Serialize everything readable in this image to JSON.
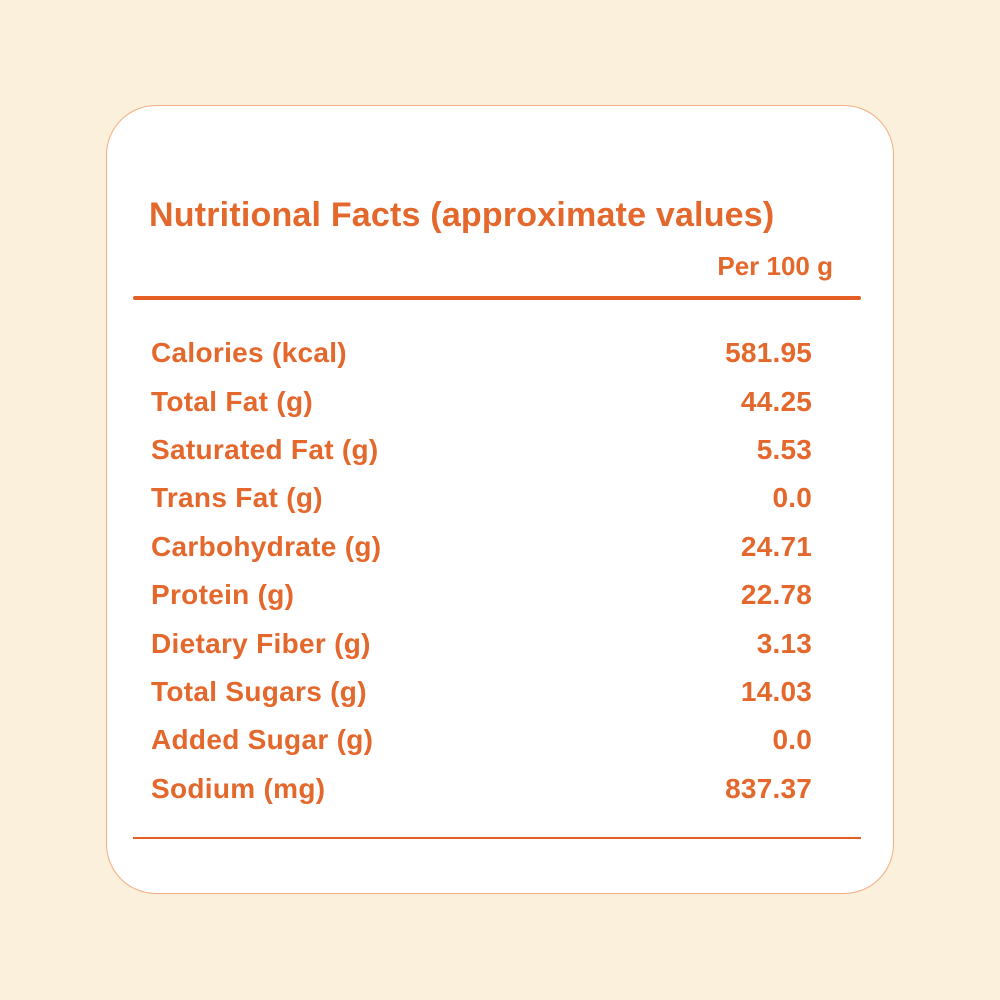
{
  "colors": {
    "page_background": "#FAF0DC",
    "card_background": "#FFFFFF",
    "card_border": "#F3AE82",
    "accent_text": "#E4672C",
    "rule": "#E55E26"
  },
  "header": {
    "title": "Nutritional Facts (approximate values)",
    "column_header": "Per 100 g"
  },
  "table": {
    "rows": [
      {
        "label": "Calories (kcal)",
        "value": "581.95"
      },
      {
        "label": "Total Fat (g)",
        "value": "44.25"
      },
      {
        "label": "Saturated Fat (g)",
        "value": "5.53"
      },
      {
        "label": "Trans Fat (g)",
        "value": "0.0"
      },
      {
        "label": "Carbohydrate (g)",
        "value": "24.71"
      },
      {
        "label": "Protein (g)",
        "value": "22.78"
      },
      {
        "label": "Dietary Fiber (g)",
        "value": "3.13"
      },
      {
        "label": "Total Sugars (g)",
        "value": "14.03"
      },
      {
        "label": "Added Sugar (g)",
        "value": "0.0"
      },
      {
        "label": "Sodium (mg)",
        "value": "837.37"
      }
    ]
  }
}
